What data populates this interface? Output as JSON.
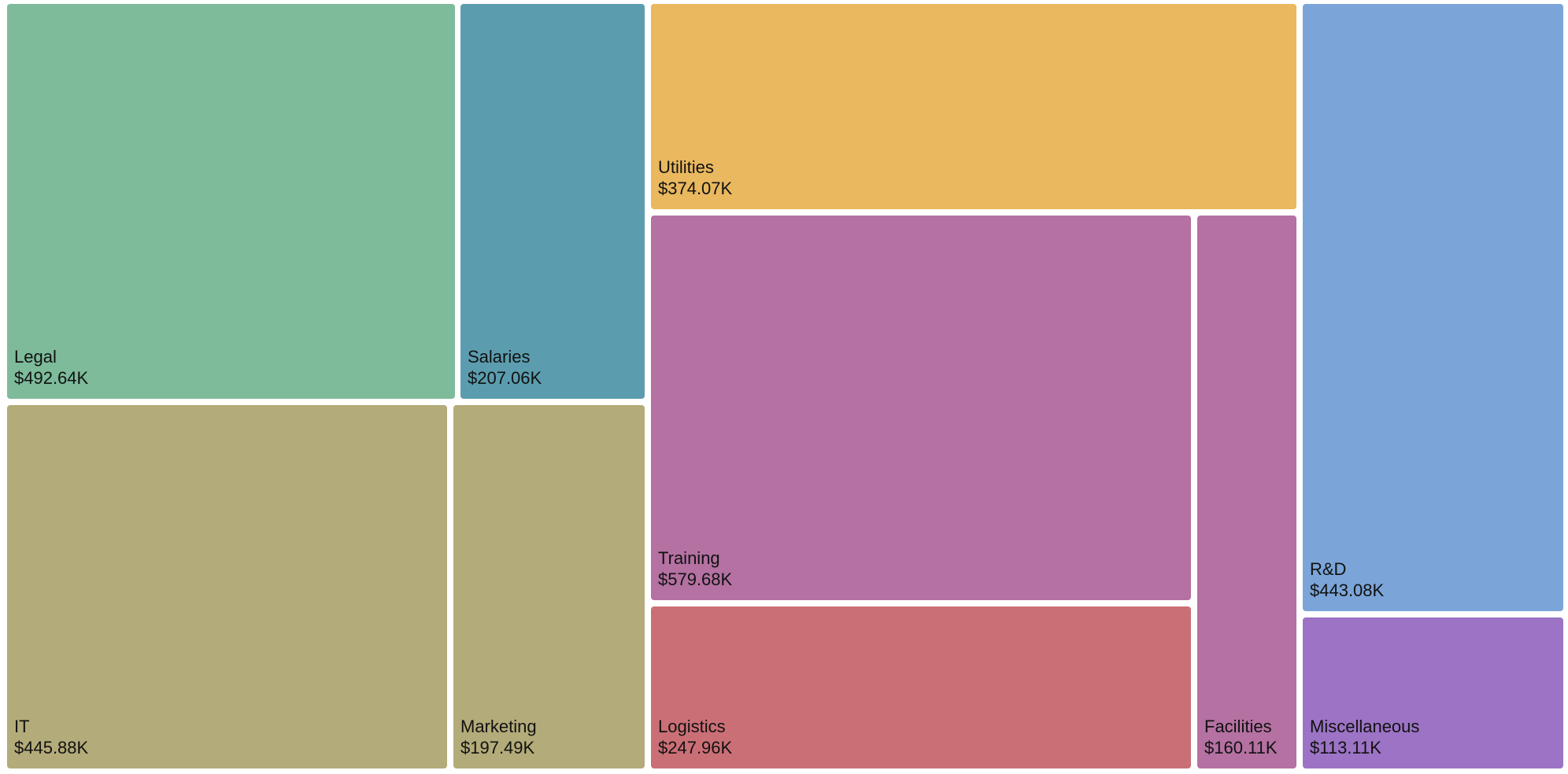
{
  "chart_data": {
    "type": "treemap",
    "title": "",
    "value_format": "currency_thousands",
    "groups": [
      {
        "name": "",
        "color": "#7dbb9a",
        "items": [
          {
            "label": "Legal",
            "value": 492.64,
            "value_label": "$492.64K"
          }
        ]
      },
      {
        "name": "",
        "color": "#5b9daf",
        "items": [
          {
            "label": "Salaries",
            "value": 207.06,
            "value_label": "$207.06K"
          }
        ]
      },
      {
        "name": "",
        "color": "#b3ab79",
        "items": [
          {
            "label": "IT",
            "value": 445.88,
            "value_label": "$445.88K"
          },
          {
            "label": "Marketing",
            "value": 197.49,
            "value_label": "$197.49K"
          }
        ]
      },
      {
        "name": "",
        "color": "#e9b85f",
        "items": [
          {
            "label": "Utilities",
            "value": 374.07,
            "value_label": "$374.07K"
          }
        ]
      },
      {
        "name": "",
        "color": "#b471a2",
        "items": [
          {
            "label": "Training",
            "value": 579.68,
            "value_label": "$579.68K"
          },
          {
            "label": "Facilities",
            "value": 160.11,
            "value_label": "$160.11K"
          }
        ]
      },
      {
        "name": "",
        "color": "#cb6f76",
        "items": [
          {
            "label": "Logistics",
            "value": 247.96,
            "value_label": "$247.96K"
          }
        ]
      },
      {
        "name": "",
        "color": "#7ba5d8",
        "items": [
          {
            "label": "R&D",
            "value": 443.08,
            "value_label": "$443.08K"
          }
        ]
      },
      {
        "name": "",
        "color": "#9c73c5",
        "items": [
          {
            "label": "Miscellaneous",
            "value": 113.11,
            "value_label": "$113.11K"
          }
        ]
      }
    ]
  }
}
